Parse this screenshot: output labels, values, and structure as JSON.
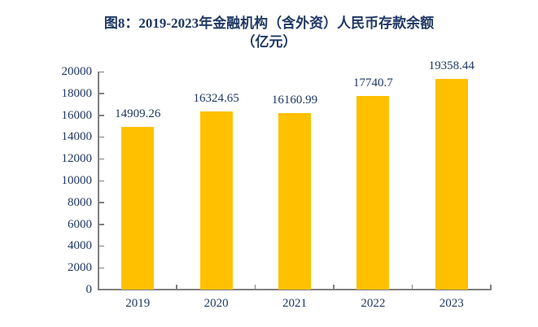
{
  "title": {
    "line1": "图8：2019-2023年金融机构（含外资）人民币存款余额",
    "line2": "（亿元）"
  },
  "chart_data": {
    "type": "bar",
    "title": "图8：2019-2023年金融机构（含外资）人民币存款余额（亿元）",
    "categories": [
      "2019",
      "2020",
      "2021",
      "2022",
      "2023"
    ],
    "values": [
      14909.26,
      16324.65,
      16160.99,
      17740.7,
      19358.44
    ],
    "data_labels": [
      "14909.26",
      "16324.65",
      "16160.99",
      "17740.7",
      "19358.44"
    ],
    "xlabel": "",
    "ylabel": "",
    "ylim": [
      0,
      20000
    ],
    "ytick_step": 2000,
    "yticks": [
      0,
      2000,
      4000,
      6000,
      8000,
      10000,
      12000,
      14000,
      16000,
      18000,
      20000
    ],
    "grid": false,
    "legend_position": "none",
    "bar_color": "#FFC000",
    "text_color": "#1F3864",
    "axis_color": "#808080"
  }
}
